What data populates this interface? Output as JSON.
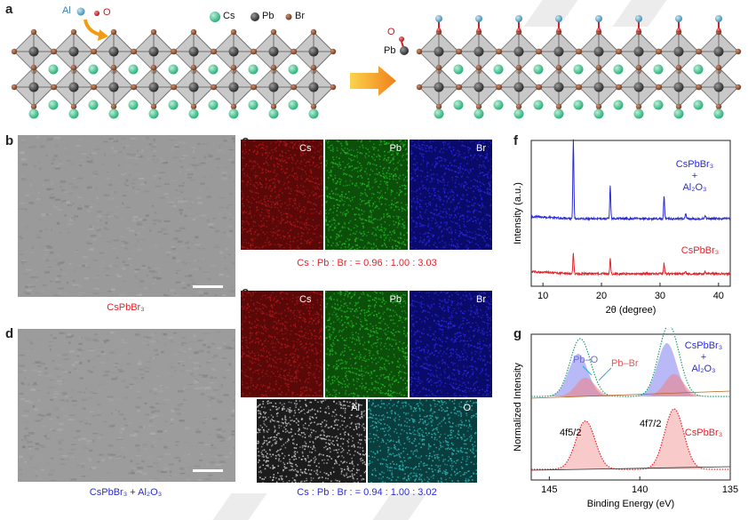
{
  "figure": {
    "panels": {
      "a": "a",
      "b": "b",
      "c": "c",
      "d": "d",
      "e": "e",
      "f": "f",
      "g": "g"
    },
    "panel_a": {
      "legend_al": "Al",
      "legend_o": "O",
      "legend_cs": "Cs",
      "legend_pb": "Pb",
      "legend_br": "Br",
      "pb_label": "Pb",
      "o_label": "O",
      "colors": {
        "cs": "#4fc79b",
        "pb": "#4a4a4a",
        "br": "#9b5a3a",
        "al": "#5da9c9",
        "o": "#d0202a",
        "arrow": "#f39c12"
      }
    },
    "panel_b": {
      "caption": "CsPbBr₃"
    },
    "panel_d": {
      "caption": "CsPbBr₃ + Al₂O₃"
    },
    "panel_c": {
      "labels": [
        "Cs",
        "Pb",
        "Br"
      ],
      "ratio": "Cs : Pb : Br : = 0.96 : 1.00 : 3.03"
    },
    "panel_e": {
      "labels": [
        "Cs",
        "Pb",
        "Br",
        "Al",
        "O"
      ],
      "ratio": "Cs : Pb : Br : = 0.94 : 1.00 : 3.02"
    },
    "panel_f": {
      "ylabel": "Intensity (a.u.)",
      "xlabel": "2θ (degree)",
      "series_top": "CsPbBr₃ + Al₂O₃",
      "series_bottom": "CsPbBr₃"
    },
    "panel_g": {
      "ylabel": "Normalized Intensity",
      "xlabel": "Binding Energy (eV)",
      "pbo": "Pb–O",
      "pbbr": "Pb–Br",
      "peak1": "4f5/2",
      "peak2": "4f7/2",
      "series_top": "CsPbBr₃ + Al₂O₃",
      "series_bottom": "CsPbBr₃"
    }
  },
  "chart_data": [
    {
      "type": "line",
      "panel": "f",
      "xlabel": "2θ (degree)",
      "ylabel": "Intensity (a.u.)",
      "xlim": [
        8,
        42
      ],
      "xticks": [
        10,
        20,
        30,
        40
      ],
      "series": [
        {
          "name": "CsPbBr₃ + Al₂O₃",
          "color": "#2b2bd6",
          "peaks": [
            {
              "x": 15.2,
              "h": 1.0
            },
            {
              "x": 21.5,
              "h": 0.42
            },
            {
              "x": 30.7,
              "h": 0.28
            },
            {
              "x": 34.4,
              "h": 0.06
            },
            {
              "x": 37.7,
              "h": 0.05
            }
          ]
        },
        {
          "name": "CsPbBr₃",
          "color": "#e3232a",
          "peaks": [
            {
              "x": 15.2,
              "h": 0.55
            },
            {
              "x": 21.5,
              "h": 0.42
            },
            {
              "x": 30.7,
              "h": 0.28
            },
            {
              "x": 34.4,
              "h": 0.06
            },
            {
              "x": 37.7,
              "h": 0.05
            }
          ]
        }
      ]
    },
    {
      "type": "line",
      "panel": "g",
      "xlabel": "Binding Energy (eV)",
      "ylabel": "Normalized Intensity",
      "xlim": [
        146,
        135
      ],
      "xticks": [
        145,
        140,
        135
      ],
      "series": [
        {
          "name": "CsPbBr₃ + Al₂O₃",
          "color": "#1f9a6e",
          "components": [
            {
              "name": "Pb–O",
              "center": 143.4,
              "h": 0.8,
              "color": "#8080f0"
            },
            {
              "name": "Pb–Br",
              "center": 143.0,
              "h": 0.35,
              "color": "#f08080"
            },
            {
              "name": "Pb–O",
              "center": 138.5,
              "h": 1.0,
              "color": "#8080f0"
            },
            {
              "name": "Pb–Br",
              "center": 138.1,
              "h": 0.42,
              "color": "#f08080"
            }
          ]
        },
        {
          "name": "CsPbBr₃",
          "color": "#e3232a",
          "peaks": [
            {
              "label": "4f5/2",
              "center": 143.0,
              "h": 0.8
            },
            {
              "label": "4f7/2",
              "center": 138.1,
              "h": 1.0
            }
          ]
        }
      ]
    }
  ]
}
